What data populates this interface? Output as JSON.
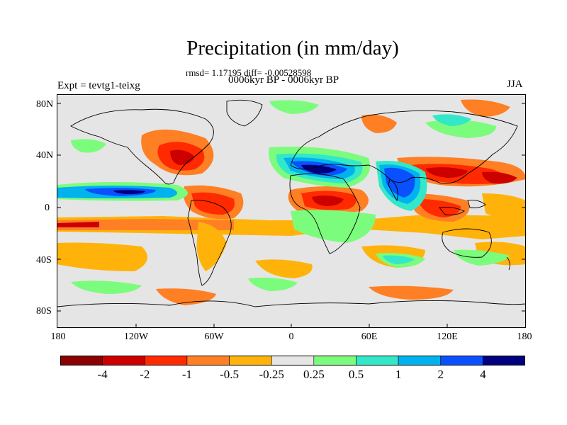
{
  "title": "Precipitation (in mm/day)",
  "stats": "rmsd= 1.17195 diff= -0.00528598",
  "period": "0006kyr BP - 0006kyr BP",
  "experiment": "Expt = tevtg1-teixg",
  "season": "JJA",
  "lat_ticks": [
    "80N",
    "40N",
    "0",
    "40S",
    "80S"
  ],
  "lon_ticks": [
    "180",
    "120W",
    "60W",
    "0",
    "60E",
    "120E",
    "180"
  ],
  "colorbar": {
    "labels": [
      "-4",
      "-2",
      "-1",
      "-0.5",
      "-0.25",
      "0.25",
      "0.5",
      "1",
      "2",
      "4"
    ],
    "colors": [
      "#8b0000",
      "#cd0000",
      "#ff2a00",
      "#ff7f24",
      "#ffb30a",
      "#e5e5e5",
      "#7cfc7c",
      "#33e8c8",
      "#00b2ee",
      "#0a50ff",
      "#00007f"
    ]
  },
  "colors": {
    "ocean_bg": "#e5e5e5",
    "coast": "#000000"
  }
}
